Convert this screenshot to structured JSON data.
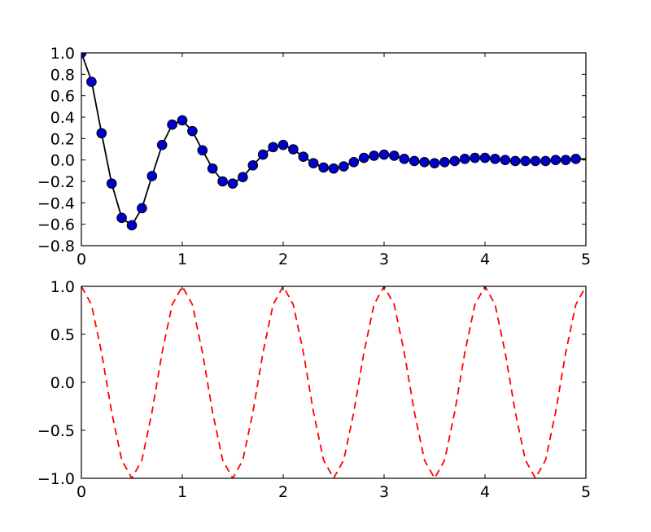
{
  "chart_data": [
    {
      "type": "line",
      "title": "",
      "xlabel": "",
      "ylabel": "",
      "xlim": [
        0,
        5
      ],
      "ylim": [
        -0.8,
        1.0
      ],
      "x_ticks": [
        "0",
        "1",
        "2",
        "3",
        "4",
        "5"
      ],
      "y_ticks": [
        "−0.8",
        "−0.6",
        "−0.4",
        "−0.2",
        "0.0",
        "0.2",
        "0.4",
        "0.6",
        "0.8",
        "1.0"
      ],
      "grid": false,
      "series": [
        {
          "style": "solid-line",
          "color": "#000000",
          "x": [
            0,
            0.1,
            0.2,
            0.3,
            0.4,
            0.5,
            0.6,
            0.7,
            0.8,
            0.9,
            1.0,
            1.1,
            1.2,
            1.3,
            1.4,
            1.5,
            1.6,
            1.7,
            1.8,
            1.9,
            2.0,
            2.1,
            2.2,
            2.3,
            2.4,
            2.5,
            2.6,
            2.7,
            2.8,
            2.9,
            3.0,
            3.1,
            3.2,
            3.3,
            3.4,
            3.5,
            3.6,
            3.7,
            3.8,
            3.9,
            4.0,
            4.1,
            4.2,
            4.3,
            4.4,
            4.5,
            4.6,
            4.7,
            4.8,
            4.9,
            5.0
          ],
          "y": [
            1.0,
            0.74,
            0.25,
            -0.22,
            -0.54,
            -0.61,
            -0.45,
            -0.15,
            0.14,
            0.33,
            0.37,
            0.27,
            0.09,
            -0.08,
            -0.2,
            -0.22,
            -0.16,
            -0.05,
            0.05,
            0.12,
            0.14,
            0.1,
            0.03,
            -0.03,
            -0.07,
            -0.08,
            -0.06,
            -0.02,
            0.02,
            0.04,
            0.05,
            0.04,
            0.01,
            -0.01,
            -0.02,
            -0.03,
            -0.02,
            -0.01,
            0.01,
            0.02,
            0.02,
            0.01,
            0.0,
            -0.01,
            -0.01,
            -0.01,
            -0.01,
            0.0,
            0.0,
            0.01,
            0.01
          ]
        },
        {
          "style": "circle-markers",
          "color": "#0000cc",
          "x": [
            0,
            0.1,
            0.2,
            0.3,
            0.4,
            0.5,
            0.6,
            0.7,
            0.8,
            0.9,
            1.0,
            1.1,
            1.2,
            1.3,
            1.4,
            1.5,
            1.6,
            1.7,
            1.8,
            1.9,
            2.0,
            2.1,
            2.2,
            2.3,
            2.4,
            2.5,
            2.6,
            2.7,
            2.8,
            2.9,
            3.0,
            3.1,
            3.2,
            3.3,
            3.4,
            3.5,
            3.6,
            3.7,
            3.8,
            3.9,
            4.0,
            4.1,
            4.2,
            4.3,
            4.4,
            4.5,
            4.6,
            4.7,
            4.8,
            4.9
          ],
          "y": [
            1.0,
            0.73,
            0.25,
            -0.22,
            -0.54,
            -0.61,
            -0.45,
            -0.15,
            0.14,
            0.33,
            0.37,
            0.27,
            0.09,
            -0.08,
            -0.2,
            -0.22,
            -0.16,
            -0.05,
            0.05,
            0.12,
            0.14,
            0.1,
            0.03,
            -0.03,
            -0.07,
            -0.08,
            -0.06,
            -0.02,
            0.02,
            0.04,
            0.05,
            0.04,
            0.01,
            -0.01,
            -0.02,
            -0.03,
            -0.02,
            -0.01,
            0.01,
            0.02,
            0.02,
            0.01,
            0.0,
            -0.01,
            -0.01,
            -0.01,
            -0.01,
            0.0,
            0.0,
            0.01
          ]
        }
      ]
    },
    {
      "type": "line",
      "title": "",
      "xlabel": "",
      "ylabel": "",
      "xlim": [
        0,
        5
      ],
      "ylim": [
        -1.0,
        1.0
      ],
      "x_ticks": [
        "0",
        "1",
        "2",
        "3",
        "4",
        "5"
      ],
      "y_ticks": [
        "−1.0",
        "−0.5",
        "0.0",
        "0.5",
        "1.0"
      ],
      "grid": false,
      "series": [
        {
          "style": "dashed-line",
          "color": "#ff0000",
          "x": [
            0,
            0.1,
            0.2,
            0.3,
            0.4,
            0.5,
            0.6,
            0.7,
            0.8,
            0.9,
            1.0,
            1.1,
            1.2,
            1.3,
            1.4,
            1.5,
            1.6,
            1.7,
            1.8,
            1.9,
            2.0,
            2.1,
            2.2,
            2.3,
            2.4,
            2.5,
            2.6,
            2.7,
            2.8,
            2.9,
            3.0,
            3.1,
            3.2,
            3.3,
            3.4,
            3.5,
            3.6,
            3.7,
            3.8,
            3.9,
            4.0,
            4.1,
            4.2,
            4.3,
            4.4,
            4.5,
            4.6,
            4.7,
            4.8,
            4.9,
            5.0
          ],
          "y": [
            1.0,
            0.81,
            0.31,
            -0.31,
            -0.81,
            -1.0,
            -0.81,
            -0.31,
            0.31,
            0.81,
            1.0,
            0.81,
            0.31,
            -0.31,
            -0.81,
            -1.0,
            -0.81,
            -0.31,
            0.31,
            0.81,
            1.0,
            0.81,
            0.31,
            -0.31,
            -0.81,
            -1.0,
            -0.81,
            -0.31,
            0.31,
            0.81,
            1.0,
            0.81,
            0.31,
            -0.31,
            -0.81,
            -1.0,
            -0.81,
            -0.31,
            0.31,
            0.81,
            1.0,
            0.81,
            0.31,
            -0.31,
            -0.81,
            -1.0,
            -0.81,
            -0.31,
            0.31,
            0.81,
            1.0
          ]
        }
      ]
    }
  ]
}
